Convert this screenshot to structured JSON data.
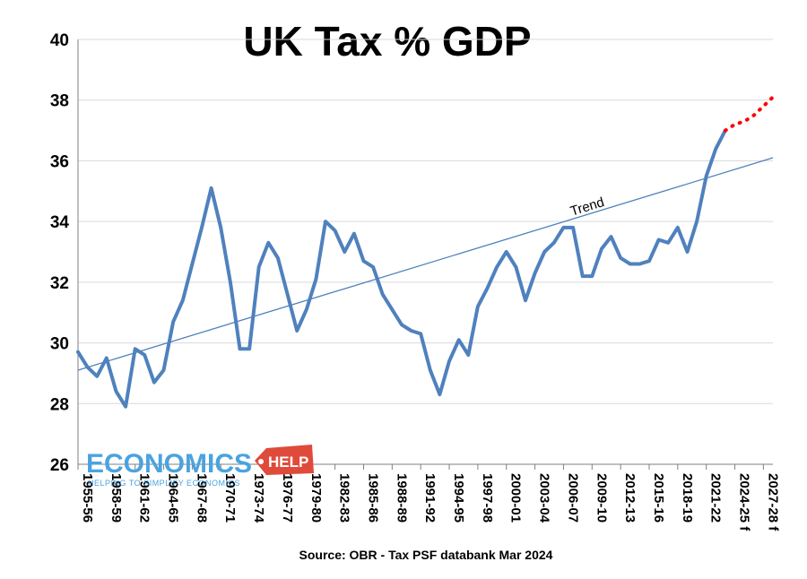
{
  "chart_data": {
    "type": "line",
    "title": "UK Tax % GDP",
    "source": "Source: OBR - Tax PSF databank Mar 2024",
    "ylim": [
      26,
      40
    ],
    "yticks": [
      26,
      28,
      30,
      32,
      34,
      36,
      38,
      40
    ],
    "grid": "horizontal",
    "xtick_labels": [
      "1955-56",
      "1958-59",
      "1961-62",
      "1964-65",
      "1967-68",
      "1970-71",
      "1973-74",
      "1976-77",
      "1979-80",
      "1982-83",
      "1985-86",
      "1988-89",
      "1991-92",
      "1994-95",
      "1997-98",
      "2000-01",
      "2003-04",
      "2006-07",
      "2009-10",
      "2012-13",
      "2015-16",
      "2018-19",
      "2021-22",
      "2024-25 f",
      "2027-28 f"
    ],
    "series": [
      {
        "style": "solid",
        "color": "#4f81bd",
        "x": [
          "1955-56",
          "1956-57",
          "1957-58",
          "1958-59",
          "1959-60",
          "1960-61",
          "1961-62",
          "1962-63",
          "1963-64",
          "1964-65",
          "1965-66",
          "1966-67",
          "1967-68",
          "1968-69",
          "1969-70",
          "1970-71",
          "1971-72",
          "1972-73",
          "1973-74",
          "1974-75",
          "1975-76",
          "1976-77",
          "1977-78",
          "1978-79",
          "1979-80",
          "1980-81",
          "1981-82",
          "1982-83",
          "1983-84",
          "1984-85",
          "1985-86",
          "1986-87",
          "1987-88",
          "1988-89",
          "1989-90",
          "1990-91",
          "1991-92",
          "1992-93",
          "1993-94",
          "1994-95",
          "1995-96",
          "1996-97",
          "1997-98",
          "1998-99",
          "1999-00",
          "2000-01",
          "2001-02",
          "2002-03",
          "2003-04",
          "2004-05",
          "2005-06",
          "2006-07",
          "2007-08",
          "2008-09",
          "2009-10",
          "2010-11",
          "2011-12",
          "2012-13",
          "2013-14",
          "2014-15",
          "2015-16",
          "2016-17",
          "2017-18",
          "2018-19",
          "2019-20",
          "2020-21",
          "2021-22",
          "2022-23",
          "2023-24"
        ],
        "values": [
          29.7,
          29.2,
          28.9,
          29.5,
          28.4,
          27.9,
          29.8,
          29.6,
          28.7,
          29.1,
          30.7,
          31.4,
          32.6,
          33.8,
          35.1,
          33.8,
          32.0,
          29.8,
          29.8,
          32.5,
          33.3,
          32.8,
          31.6,
          30.4,
          31.1,
          32.1,
          34.0,
          33.7,
          33.0,
          33.6,
          32.7,
          32.5,
          31.6,
          31.1,
          30.6,
          30.4,
          30.3,
          29.1,
          28.3,
          29.4,
          30.1,
          29.6,
          31.2,
          31.8,
          32.5,
          33.0,
          32.5,
          31.4,
          32.3,
          33.0,
          33.3,
          33.8,
          33.8,
          32.2,
          32.2,
          33.1,
          33.5,
          32.8,
          32.6,
          32.6,
          32.7,
          33.4,
          33.3,
          33.8,
          33.0,
          34.0,
          35.5,
          36.4,
          37.0
        ]
      },
      {
        "style": "dotted",
        "color": "#ff0000",
        "x": [
          "2023-24",
          "2024-25 f",
          "2025-26 f",
          "2026-27 f",
          "2027-28 f",
          "2028-29 f"
        ],
        "values": [
          37.0,
          37.2,
          37.3,
          37.5,
          37.8,
          38.1
        ]
      }
    ],
    "trend": {
      "label": "Trend",
      "start": [
        "1955-56",
        29.1
      ],
      "end": [
        "2028-29 f",
        36.1
      ],
      "color": "#4f81bd"
    }
  },
  "logo": {
    "name": "ECONOMICS",
    "badge": "HELP",
    "tagline": "HELPING TO SIMPLIFY ECONOMICS"
  }
}
